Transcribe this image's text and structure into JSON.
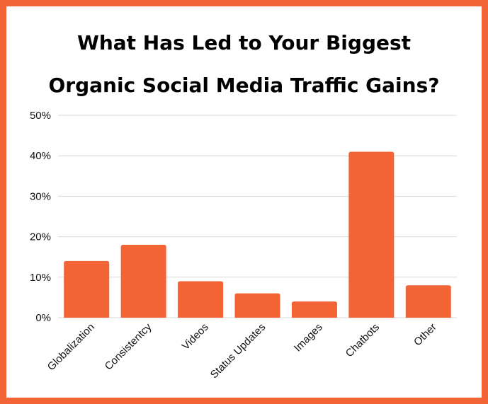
{
  "chart_data": {
    "type": "bar",
    "title_lines": [
      "What Has Led to Your Biggest",
      "Organic Social Media Traffic Gains?"
    ],
    "categories": [
      "Globalization",
      "Consistentcy",
      "Videos",
      "Status Updates",
      "Images",
      "Chatbots",
      "Other"
    ],
    "values": [
      14,
      18,
      9,
      6,
      4,
      41,
      8
    ],
    "y_ticks": [
      "0%",
      "10%",
      "20%",
      "30%",
      "40%",
      "50%"
    ],
    "ylim": [
      0,
      50
    ],
    "grid": true,
    "legend": "none",
    "colors": {
      "bar": "#f26336",
      "border": "#f26336",
      "grid": "#d9d9d9"
    }
  }
}
